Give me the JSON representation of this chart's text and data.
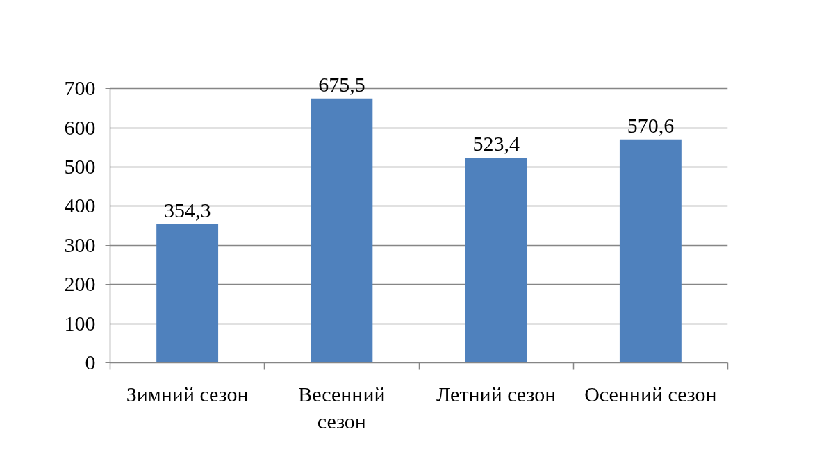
{
  "chart_data": {
    "type": "bar",
    "categories": [
      "Зимний сезон",
      "Весенний сезон",
      "Летний сезон",
      "Осенний сезон"
    ],
    "values": [
      354.3,
      675.5,
      523.4,
      570.6
    ],
    "value_labels": [
      "354,3",
      "675,5",
      "523,4",
      "570,6"
    ],
    "color": "#4f81bd",
    "ylim": [
      0,
      700
    ],
    "yticks": [
      0,
      100,
      200,
      300,
      400,
      500,
      600,
      700
    ],
    "grid": "y"
  }
}
